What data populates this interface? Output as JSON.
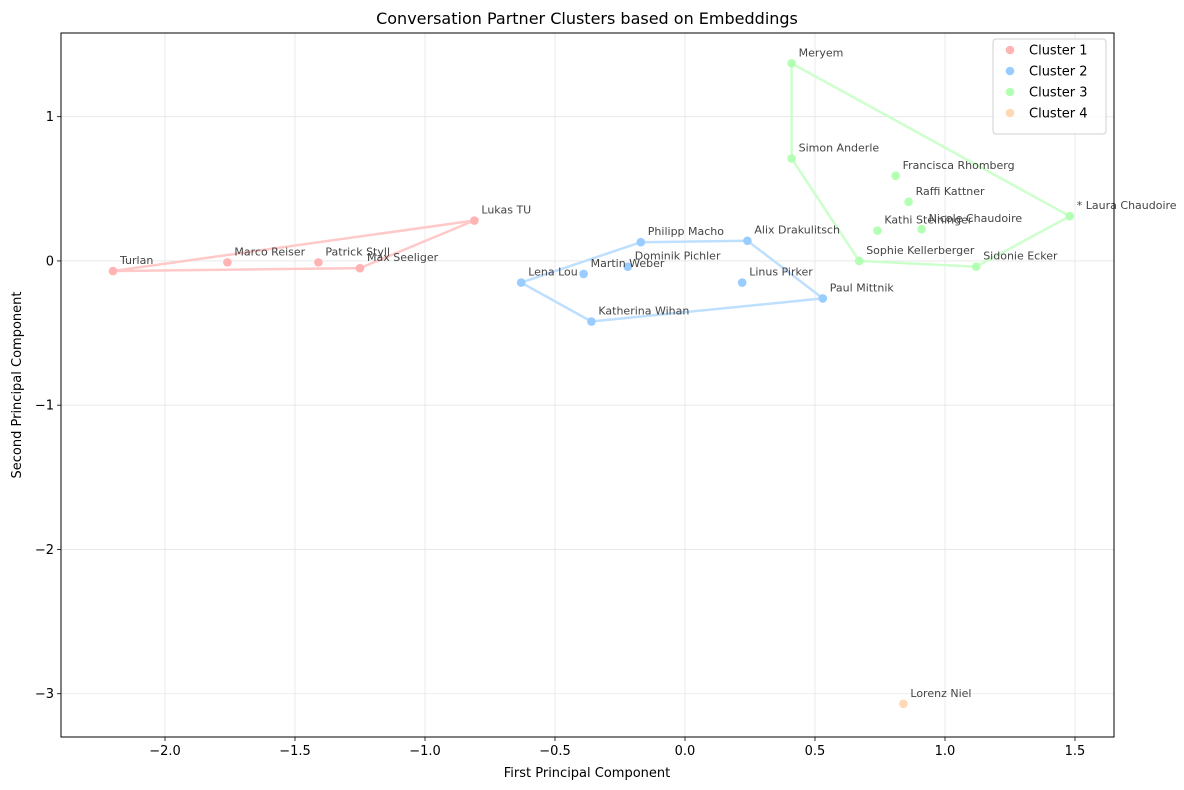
{
  "chart_data": {
    "type": "scatter",
    "title": "Conversation Partner Clusters based on Embeddings",
    "xlabel": "First Principal Component",
    "ylabel": "Second Principal Component",
    "xlim": [
      -2.4,
      1.65
    ],
    "ylim": [
      -3.3,
      1.58
    ],
    "xticks": [
      -2.0,
      -1.5,
      -1.0,
      -0.5,
      0.0,
      0.5,
      1.0,
      1.5
    ],
    "xtick_labels": [
      "−2.0",
      "−1.5",
      "−1.0",
      "−0.5",
      "0.0",
      "0.5",
      "1.0",
      "1.5"
    ],
    "yticks": [
      -3,
      -2,
      -1,
      0,
      1
    ],
    "ytick_labels": [
      "−3",
      "−2",
      "−1",
      "0",
      "1"
    ],
    "grid": true,
    "legend_position": "top-right",
    "series": [
      {
        "name": "Cluster 1",
        "color": "#ffb3b3",
        "hull_color": "#ffc9c9",
        "points": [
          {
            "label": "Turlan",
            "x": -2.2,
            "y": -0.07
          },
          {
            "label": "Marco Reiser",
            "x": -1.76,
            "y": -0.01
          },
          {
            "label": "Patrick Styll",
            "x": -1.41,
            "y": -0.01
          },
          {
            "label": "Max Seeliger",
            "x": -1.25,
            "y": -0.05
          },
          {
            "label": "Lukas TU",
            "x": -0.81,
            "y": 0.28
          }
        ],
        "hull": [
          [
            -2.2,
            -0.07
          ],
          [
            -0.81,
            0.28
          ],
          [
            -1.25,
            -0.05
          ],
          [
            -2.2,
            -0.07
          ]
        ]
      },
      {
        "name": "Cluster 2",
        "color": "#99ccff",
        "hull_color": "#bfdfff",
        "points": [
          {
            "label": "Lena Lou",
            "x": -0.63,
            "y": -0.15
          },
          {
            "label": "Martin Weber",
            "x": -0.39,
            "y": -0.09
          },
          {
            "label": "Dominik Pichler",
            "x": -0.22,
            "y": -0.04
          },
          {
            "label": "Philipp Macho",
            "x": -0.17,
            "y": 0.13
          },
          {
            "label": "Alix Drakulitsch",
            "x": 0.24,
            "y": 0.14
          },
          {
            "label": "Linus Pirker",
            "x": 0.22,
            "y": -0.15
          },
          {
            "label": "Paul Mittnik",
            "x": 0.53,
            "y": -0.26
          },
          {
            "label": "Katherina Wihan",
            "x": -0.36,
            "y": -0.42
          }
        ],
        "hull": [
          [
            -0.63,
            -0.15
          ],
          [
            -0.36,
            -0.42
          ],
          [
            0.53,
            -0.26
          ],
          [
            0.24,
            0.14
          ],
          [
            -0.17,
            0.13
          ],
          [
            -0.63,
            -0.15
          ]
        ]
      },
      {
        "name": "Cluster 3",
        "color": "#b3ffb3",
        "hull_color": "#ccffcc",
        "points": [
          {
            "label": "Meryem",
            "x": 0.41,
            "y": 1.37
          },
          {
            "label": "Simon Anderle",
            "x": 0.41,
            "y": 0.71
          },
          {
            "label": "Francisca Rhomberg",
            "x": 0.81,
            "y": 0.59
          },
          {
            "label": "Raffi Kattner",
            "x": 0.86,
            "y": 0.41
          },
          {
            "label": "Kathi Steininger",
            "x": 0.74,
            "y": 0.21
          },
          {
            "label": "Nicole Chaudoire",
            "x": 0.91,
            "y": 0.22
          },
          {
            "label": "* Laura Chaudoire",
            "x": 1.48,
            "y": 0.31
          },
          {
            "label": "Sophie Kellerberger",
            "x": 0.67,
            "y": 0.0
          },
          {
            "label": "Sidonie Ecker",
            "x": 1.12,
            "y": -0.04
          }
        ],
        "hull": [
          [
            0.41,
            1.37
          ],
          [
            1.48,
            0.31
          ],
          [
            1.12,
            -0.04
          ],
          [
            0.67,
            0.0
          ],
          [
            0.41,
            0.71
          ],
          [
            0.41,
            1.37
          ]
        ]
      },
      {
        "name": "Cluster 4",
        "color": "#ffd9b3",
        "hull_color": "#ffe6cc",
        "points": [
          {
            "label": "Lorenz Niel",
            "x": 0.84,
            "y": -3.07
          }
        ],
        "hull": []
      }
    ]
  }
}
